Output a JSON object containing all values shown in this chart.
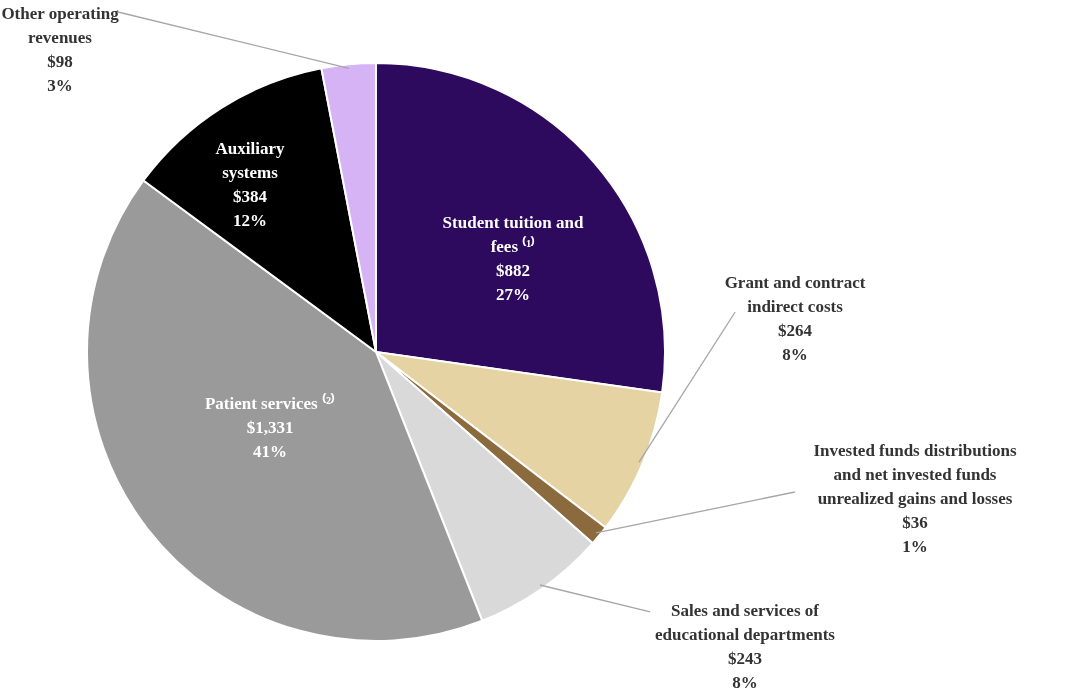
{
  "chart_data": {
    "type": "pie",
    "categories": [
      "Student tuition and fees ⁽¹⁾",
      "Grant and contract indirect costs",
      "Invested funds distributions and net invested funds unrealized gains and losses",
      "Sales and services of educational departments",
      "Patient services ⁽²⁾",
      "Auxiliary systems",
      "Other operating revenues"
    ],
    "values": [
      882,
      264,
      36,
      243,
      1331,
      384,
      98
    ],
    "colors": [
      "#2e0a5e",
      "#e6d3a3",
      "#8b6b3d",
      "#d9d9d9",
      "#9a9a9a",
      "#000000",
      "#d6b3f5"
    ],
    "value_labels": [
      "$882\n27%",
      "$264\n8%",
      "$36\n1%",
      "$243\n8%",
      "$1,331\n41%",
      "$384\n12%",
      "$98\n3%"
    ],
    "legend": false
  }
}
